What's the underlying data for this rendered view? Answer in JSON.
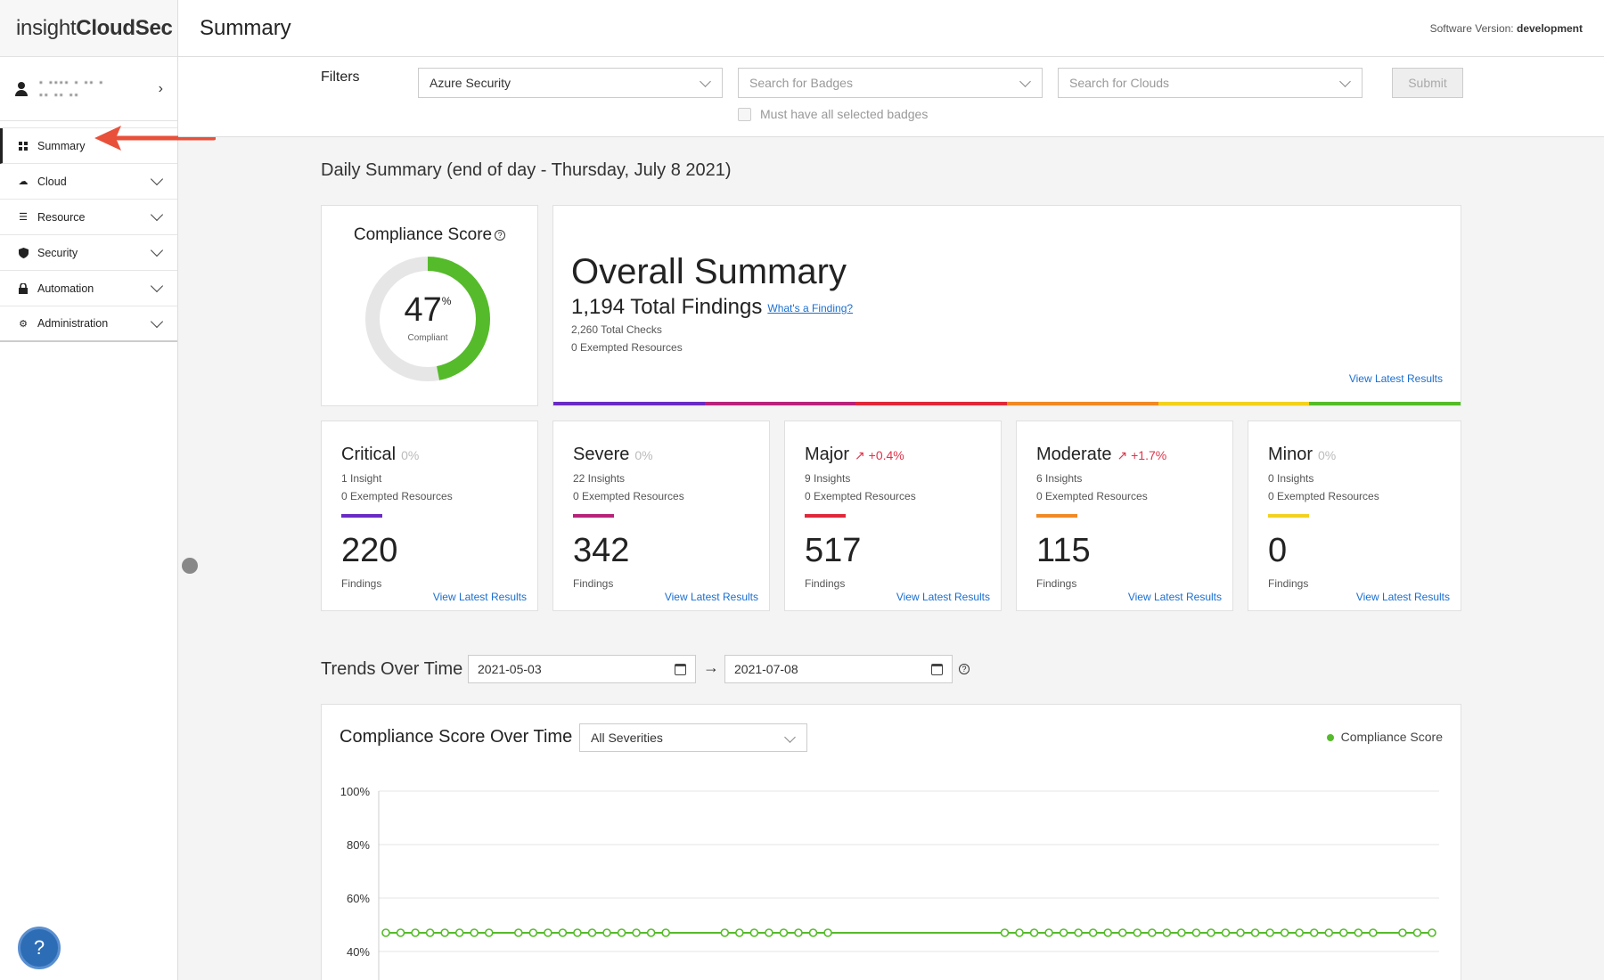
{
  "app": {
    "brand_light": "insight",
    "brand_bold": "CloudSec",
    "version_label": "Software Version:",
    "version_value": "development"
  },
  "header": {
    "title": "Summary"
  },
  "user": {
    "name_line1": "▪ ▪▪▪▪ ▪ ▪▪ ▪",
    "name_line2": "▪▪ ▪▪ ▪▪"
  },
  "sidebar": {
    "items": [
      {
        "label": "Summary",
        "icon": "grid-icon",
        "active": true
      },
      {
        "label": "Cloud",
        "icon": "cloud-icon"
      },
      {
        "label": "Resource",
        "icon": "list-icon"
      },
      {
        "label": "Security",
        "icon": "shield-icon"
      },
      {
        "label": "Automation",
        "icon": "lock-icon"
      },
      {
        "label": "Administration",
        "icon": "gear-icon"
      }
    ]
  },
  "filters": {
    "label": "Filters",
    "pack_value": "Azure Security",
    "badges_placeholder": "Search for Badges",
    "clouds_placeholder": "Search for Clouds",
    "submit_label": "Submit",
    "must_have_label": "Must have all selected badges"
  },
  "daily": {
    "title": "Daily Summary (end of day - Thursday, July 8 2021)"
  },
  "compliance": {
    "title": "Compliance Score",
    "value": "47",
    "unit": "%",
    "sub": "Compliant",
    "percent": 47
  },
  "overall": {
    "title": "Overall Summary",
    "total": "1,194 Total Findings",
    "whats_link": "What's a Finding?",
    "checks": "2,260 Total Checks",
    "exempted": "0 Exempted Resources",
    "view_link": "View Latest Results"
  },
  "colors": {
    "critical": "#6a2bc4",
    "severe": "#b8237a",
    "major": "#e0283a",
    "moderate": "#f08a24",
    "minor": "#f2d21f",
    "ok": "#55bb2a"
  },
  "severities": [
    {
      "name": "Critical",
      "pct": "0%",
      "trend": "flat",
      "insights": "1 Insight",
      "exempted": "0 Exempted Resources",
      "count": "220",
      "findings_label": "Findings",
      "link": "View Latest Results",
      "color": "#6a2bc4"
    },
    {
      "name": "Severe",
      "pct": "0%",
      "trend": "flat",
      "insights": "22 Insights",
      "exempted": "0 Exempted Resources",
      "count": "342",
      "findings_label": "Findings",
      "link": "View Latest Results",
      "color": "#b8237a"
    },
    {
      "name": "Major",
      "pct": "+0.4%",
      "trend": "up",
      "insights": "9 Insights",
      "exempted": "0 Exempted Resources",
      "count": "517",
      "findings_label": "Findings",
      "link": "View Latest Results",
      "color": "#e0283a"
    },
    {
      "name": "Moderate",
      "pct": "+1.7%",
      "trend": "up",
      "insights": "6 Insights",
      "exempted": "0 Exempted Resources",
      "count": "115",
      "findings_label": "Findings",
      "link": "View Latest Results",
      "color": "#f08a24"
    },
    {
      "name": "Minor",
      "pct": "0%",
      "trend": "flat",
      "insights": "0 Insights",
      "exempted": "0 Exempted Resources",
      "count": "0",
      "findings_label": "Findings",
      "link": "View Latest Results",
      "color": "#f2d21f"
    }
  ],
  "trends": {
    "title": "Trends Over Time",
    "start": "2021-05-03",
    "end": "2021-07-08"
  },
  "chart_panel": {
    "title": "Compliance Score Over Time",
    "severity_select": "All Severities"
  },
  "chart_data": {
    "type": "line",
    "title": "Compliance Score Over Time",
    "xlabel": "",
    "ylabel": "",
    "ylim": [
      30,
      100
    ],
    "yticks": [
      "100%",
      "80%",
      "60%",
      "40%"
    ],
    "ytick_values": [
      100,
      80,
      60,
      40
    ],
    "grid": true,
    "legend_position": "top-right",
    "series": [
      {
        "name": "Compliance Score",
        "color": "#55bb2a",
        "x": [
          1,
          2,
          3,
          4,
          5,
          6,
          7,
          8,
          10,
          11,
          12,
          13,
          14,
          15,
          16,
          17,
          18,
          19,
          20,
          24,
          25,
          26,
          27,
          28,
          29,
          30,
          31,
          43,
          44,
          45,
          46,
          47,
          48,
          49,
          50,
          51,
          52,
          53,
          54,
          55,
          56,
          57,
          58,
          59,
          60,
          61,
          62,
          63,
          64,
          65,
          66,
          67,
          68,
          70,
          71,
          72
        ],
        "y": [
          47,
          47,
          47,
          47,
          47,
          47,
          47,
          47,
          47,
          47,
          47,
          47,
          47,
          47,
          47,
          47,
          47,
          47,
          47,
          47,
          47,
          47,
          47,
          47,
          47,
          47,
          47,
          47,
          47,
          47,
          47,
          47,
          47,
          47,
          47,
          47,
          47,
          47,
          47,
          47,
          47,
          47,
          47,
          47,
          47,
          47,
          47,
          47,
          47,
          47,
          47,
          47,
          47,
          47,
          47,
          47
        ]
      }
    ]
  }
}
